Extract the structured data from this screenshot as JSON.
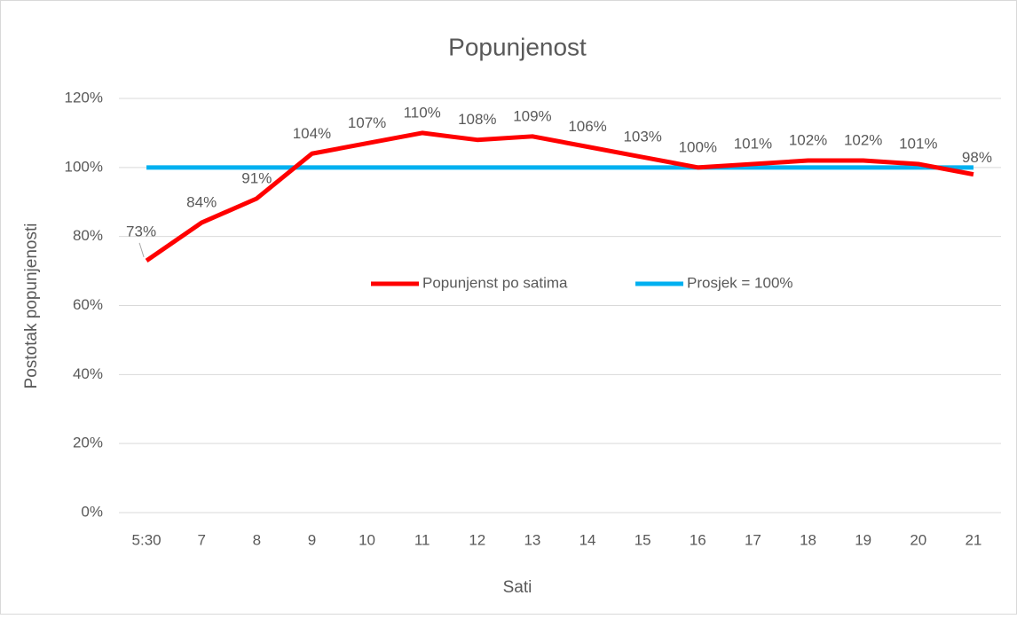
{
  "chart_data": {
    "type": "line",
    "title": "Popunjenost",
    "x_label": "Sati",
    "y_label": "Postotak popunjenosti",
    "categories": [
      "5:30",
      "7",
      "8",
      "9",
      "10",
      "11",
      "12",
      "13",
      "14",
      "15",
      "16",
      "17",
      "18",
      "19",
      "20",
      "21"
    ],
    "series": [
      {
        "name": "Popunjenst po satima",
        "color": "#ff0000",
        "values": [
          73,
          84,
          91,
          104,
          107,
          110,
          108,
          109,
          106,
          103,
          100,
          101,
          102,
          102,
          101,
          98
        ],
        "value_labels": [
          "73%",
          "84%",
          "91%",
          "104%",
          "107%",
          "110%",
          "108%",
          "109%",
          "106%",
          "103%",
          "100%",
          "101%",
          "102%",
          "102%",
          "101%",
          "98%"
        ]
      },
      {
        "name": "Prosjek = 100%",
        "color": "#00b0f0",
        "values": [
          100,
          100,
          100,
          100,
          100,
          100,
          100,
          100,
          100,
          100,
          100,
          100,
          100,
          100,
          100,
          100
        ]
      }
    ],
    "ylim": [
      0,
      120
    ],
    "yticks": [
      {
        "value": 0,
        "label": "0%"
      },
      {
        "value": 20,
        "label": "20%"
      },
      {
        "value": 40,
        "label": "40%"
      },
      {
        "value": 60,
        "label": "60%"
      },
      {
        "value": 80,
        "label": "80%"
      },
      {
        "value": 100,
        "label": "100%"
      },
      {
        "value": 120,
        "label": "120%"
      }
    ],
    "grid": true,
    "legend": "center"
  }
}
